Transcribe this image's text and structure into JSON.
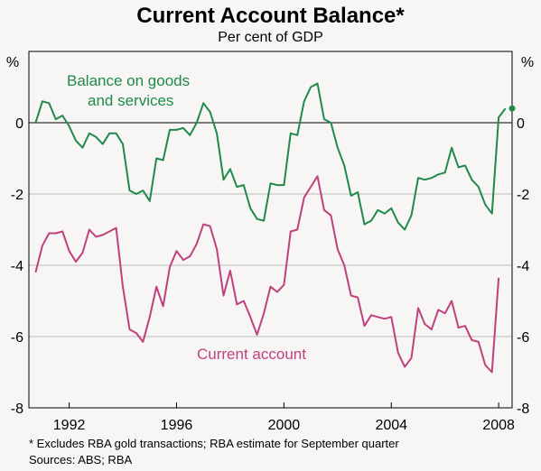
{
  "chart_data": {
    "type": "line",
    "title": "Current Account Balance*",
    "subtitle": "Per cent of GDP",
    "ylabel_left": "%",
    "ylabel_right": "%",
    "ylim": [
      -8,
      2
    ],
    "xlim": [
      1990.5,
      2008.5
    ],
    "y_ticks": [
      0,
      -2,
      -4,
      -6,
      -8
    ],
    "y_tick_labels": [
      "0",
      "-2",
      "-4",
      "-6",
      "-8"
    ],
    "x_ticks": [
      1992,
      1996,
      2000,
      2004,
      2008
    ],
    "x_tick_labels": [
      "1992",
      "1996",
      "2000",
      "2004",
      "2008"
    ],
    "grid": true,
    "series": [
      {
        "name": "Balance on goods and services",
        "label_lines": [
          "Balance on goods",
          "and services"
        ],
        "color": "#1f8a4c",
        "x": [
          1990.75,
          1991.0,
          1991.25,
          1991.5,
          1991.75,
          1992.0,
          1992.25,
          1992.5,
          1992.75,
          1993.0,
          1993.25,
          1993.5,
          1993.75,
          1994.0,
          1994.25,
          1994.5,
          1994.75,
          1995.0,
          1995.25,
          1995.5,
          1995.75,
          1996.0,
          1996.25,
          1996.5,
          1996.75,
          1997.0,
          1997.25,
          1997.5,
          1997.75,
          1998.0,
          1998.25,
          1998.5,
          1998.75,
          1999.0,
          1999.25,
          1999.5,
          1999.75,
          2000.0,
          2000.25,
          2000.5,
          2000.75,
          2001.0,
          2001.25,
          2001.5,
          2001.75,
          2002.0,
          2002.25,
          2002.5,
          2002.75,
          2003.0,
          2003.25,
          2003.5,
          2003.75,
          2004.0,
          2004.25,
          2004.5,
          2004.75,
          2005.0,
          2005.25,
          2005.5,
          2005.75,
          2006.0,
          2006.25,
          2006.5,
          2006.75,
          2007.0,
          2007.25,
          2007.5,
          2007.75,
          2008.0,
          2008.25
        ],
        "values": [
          0.0,
          0.6,
          0.55,
          0.1,
          0.2,
          -0.1,
          -0.5,
          -0.7,
          -0.3,
          -0.4,
          -0.6,
          -0.3,
          -0.3,
          -0.6,
          -1.9,
          -2.0,
          -1.9,
          -2.2,
          -1.0,
          -1.05,
          -0.2,
          -0.2,
          -0.15,
          -0.35,
          0.0,
          0.55,
          0.3,
          -0.3,
          -1.6,
          -1.3,
          -1.8,
          -1.75,
          -2.4,
          -2.7,
          -2.75,
          -1.7,
          -1.75,
          -1.75,
          -0.3,
          -0.35,
          0.6,
          1.0,
          1.1,
          0.1,
          0.0,
          -0.7,
          -1.2,
          -2.05,
          -1.95,
          -2.85,
          -2.75,
          -2.45,
          -2.55,
          -2.4,
          -2.8,
          -3.0,
          -2.6,
          -1.55,
          -1.6,
          -1.55,
          -1.45,
          -1.4,
          -0.7,
          -1.25,
          -1.2,
          -1.6,
          -1.8,
          -2.3,
          -2.55,
          0.15,
          0.4
        ]
      },
      {
        "name": "Current account",
        "label_lines": [
          "Current account"
        ],
        "color": "#c0407e",
        "x": [
          1990.75,
          1991.0,
          1991.25,
          1991.5,
          1991.75,
          1992.0,
          1992.25,
          1992.5,
          1992.75,
          1993.0,
          1993.25,
          1993.5,
          1993.75,
          1994.0,
          1994.25,
          1994.5,
          1994.75,
          1995.0,
          1995.25,
          1995.5,
          1995.75,
          1996.0,
          1996.25,
          1996.5,
          1996.75,
          1997.0,
          1997.25,
          1997.5,
          1997.75,
          1998.0,
          1998.25,
          1998.5,
          1998.75,
          1999.0,
          1999.25,
          1999.5,
          1999.75,
          2000.0,
          2000.25,
          2000.5,
          2000.75,
          2001.0,
          2001.25,
          2001.5,
          2001.75,
          2002.0,
          2002.25,
          2002.5,
          2002.75,
          2003.0,
          2003.25,
          2003.5,
          2003.75,
          2004.0,
          2004.25,
          2004.5,
          2004.75,
          2005.0,
          2005.25,
          2005.5,
          2005.75,
          2006.0,
          2006.25,
          2006.5,
          2006.75,
          2007.0,
          2007.25,
          2007.5,
          2007.75,
          2008.0
        ],
        "values": [
          -4.2,
          -3.45,
          -3.1,
          -3.1,
          -3.05,
          -3.6,
          -3.9,
          -3.65,
          -3.0,
          -3.2,
          -3.15,
          -3.05,
          -2.95,
          -4.6,
          -5.8,
          -5.9,
          -6.15,
          -5.45,
          -4.6,
          -5.15,
          -4.05,
          -3.6,
          -3.85,
          -3.75,
          -3.4,
          -2.85,
          -2.9,
          -3.55,
          -4.85,
          -4.15,
          -5.1,
          -5.0,
          -5.45,
          -5.95,
          -5.35,
          -4.6,
          -4.75,
          -4.55,
          -3.05,
          -3.0,
          -2.1,
          -1.8,
          -1.5,
          -2.45,
          -2.6,
          -3.55,
          -4.0,
          -4.85,
          -4.9,
          -5.7,
          -5.4,
          -5.45,
          -5.5,
          -5.45,
          -6.45,
          -6.85,
          -6.6,
          -5.2,
          -5.65,
          -5.8,
          -5.25,
          -5.35,
          -5.0,
          -5.75,
          -5.7,
          -6.1,
          -6.15,
          -6.8,
          -7.0,
          -4.35
        ]
      }
    ],
    "estimate_point": {
      "x": 2008.5,
      "value": 0.4,
      "color": "#1f8a4c"
    },
    "footnote": "*    Excludes RBA gold transactions; RBA estimate for September quarter",
    "sources": "Sources: ABS; RBA"
  }
}
